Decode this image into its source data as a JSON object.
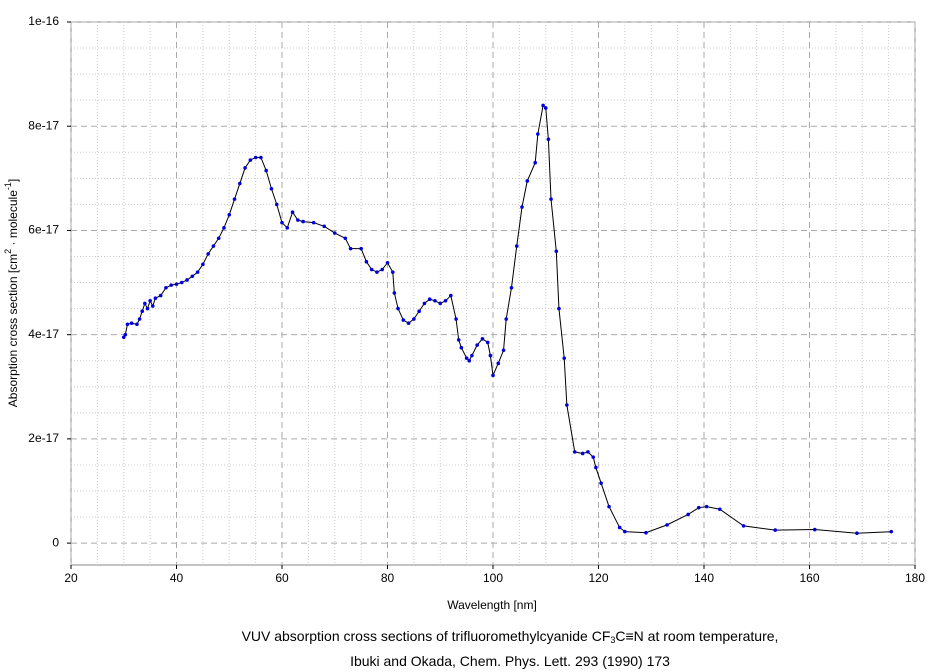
{
  "chart_data": {
    "type": "line",
    "xlabel": "Wavelength [nm]",
    "ylabel": [
      "Absorption cross section [cm",
      "2",
      " · molecule",
      "-1",
      "]"
    ],
    "caption": [
      [
        "VUV absorption cross sections of trifluoromethylcyanide CF",
        "3",
        "C≡N at room temperature,"
      ],
      [
        "Ibuki and Okada, Chem. Phys. Lett. 293 (1990) 173"
      ]
    ],
    "xlim": [
      20,
      180
    ],
    "xticks": [
      20,
      40,
      60,
      80,
      100,
      120,
      140,
      160,
      180
    ],
    "ylim": [
      -4.2e-18,
      1e-16
    ],
    "yticks": [
      0,
      2e-17,
      4e-17,
      6e-17,
      8e-17,
      1e-16
    ],
    "grid": true,
    "minor_grid_divisions": 4,
    "x": [
      30,
      30.3,
      30.7,
      31.5,
      32.5,
      33,
      33.5,
      34,
      34.5,
      35,
      35.5,
      36,
      37,
      38,
      39,
      40,
      41,
      42,
      43,
      44,
      45,
      46,
      47,
      48,
      49,
      50,
      51,
      52,
      53,
      54,
      55,
      56,
      57,
      58,
      59,
      60,
      61,
      62,
      63,
      64,
      66,
      68,
      70,
      72,
      73,
      75,
      76,
      77,
      78,
      79,
      80,
      81,
      81.3,
      82,
      83,
      84,
      85,
      86,
      87,
      88,
      89,
      90,
      91,
      92,
      93,
      93.5,
      94,
      95,
      95.5,
      96,
      97,
      98,
      99,
      99.5,
      100,
      101,
      102,
      102.5,
      103.5,
      104.5,
      105.5,
      106.5,
      108,
      108.5,
      109.5,
      110,
      110.5,
      111,
      112,
      112.5,
      113.5,
      114,
      115.5,
      117,
      118,
      119,
      119.5,
      120.5,
      122,
      124,
      125,
      129,
      133,
      137,
      139,
      140.5,
      143,
      147.5,
      153.5,
      161,
      169,
      175.5
    ],
    "series": [
      {
        "line_color": "#000000",
        "color": "#0000dd",
        "values": [
          3.95e-17,
          4e-17,
          4.2e-17,
          4.22e-17,
          4.2e-17,
          4.3e-17,
          4.45e-17,
          4.6e-17,
          4.5e-17,
          4.65e-17,
          4.55e-17,
          4.7e-17,
          4.75e-17,
          4.9e-17,
          4.95e-17,
          4.97e-17,
          5e-17,
          5.05e-17,
          5.12e-17,
          5.2e-17,
          5.35e-17,
          5.55e-17,
          5.7e-17,
          5.85e-17,
          6.05e-17,
          6.3e-17,
          6.6e-17,
          6.9e-17,
          7.2e-17,
          7.35e-17,
          7.4e-17,
          7.4e-17,
          7.15e-17,
          6.8e-17,
          6.5e-17,
          6.15e-17,
          6.05e-17,
          6.35e-17,
          6.2e-17,
          6.17e-17,
          6.15e-17,
          6.08e-17,
          5.95e-17,
          5.85e-17,
          5.65e-17,
          5.65e-17,
          5.4e-17,
          5.25e-17,
          5.2e-17,
          5.25e-17,
          5.38e-17,
          5.2e-17,
          4.8e-17,
          4.5e-17,
          4.28e-17,
          4.22e-17,
          4.3e-17,
          4.45e-17,
          4.6e-17,
          4.68e-17,
          4.65e-17,
          4.6e-17,
          4.65e-17,
          4.75e-17,
          4.3e-17,
          3.9e-17,
          3.75e-17,
          3.55e-17,
          3.5e-17,
          3.6e-17,
          3.8e-17,
          3.92e-17,
          3.85e-17,
          3.6e-17,
          3.22e-17,
          3.45e-17,
          3.7e-17,
          4.3e-17,
          4.9e-17,
          5.7e-17,
          6.45e-17,
          6.95e-17,
          7.3e-17,
          7.85e-17,
          8.4e-17,
          8.35e-17,
          7.75e-17,
          6.6e-17,
          5.6e-17,
          4.5e-17,
          3.55e-17,
          2.65e-17,
          1.75e-17,
          1.72e-17,
          1.75e-17,
          1.65e-17,
          1.45e-17,
          1.15e-17,
          7e-18,
          3e-18,
          2.2e-18,
          2e-18,
          3.5e-18,
          5.5e-18,
          6.8e-18,
          7e-18,
          6.5e-18,
          3.3e-18,
          2.5e-18,
          2.6e-18,
          1.9e-18,
          2.2e-18
        ]
      }
    ]
  }
}
